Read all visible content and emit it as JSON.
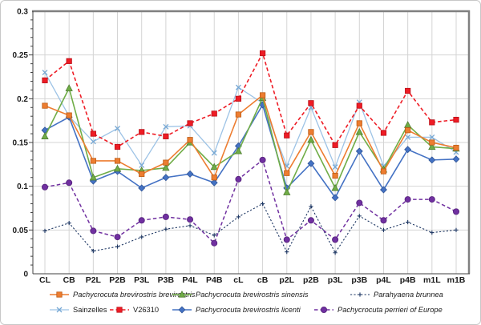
{
  "figure": {
    "background": "#ffffff",
    "border_color": "#c8c8c8",
    "grid_color": "#d4d4d4",
    "frame_dark": "#404040",
    "frame_gray": "#808080",
    "text_color": "#1a1a1a"
  },
  "chart_data": {
    "type": "line",
    "title": "",
    "xlabel": "",
    "ylabel": "",
    "ylim": [
      0,
      0.3
    ],
    "ytick_step": 0.05,
    "ytick_labels": [
      "0",
      "0.05",
      "0.1",
      "0.15",
      "0.2",
      "0.25",
      "0.3"
    ],
    "grid": true,
    "legend_position": "bottom",
    "categories": [
      "CL",
      "CB",
      "P2L",
      "P2B",
      "P3L",
      "P3B",
      "P4L",
      "P4B",
      "cL",
      "cB",
      "p2L",
      "p2B",
      "p3L",
      "p3B",
      "p4L",
      "p4B",
      "m1L",
      "m1B"
    ],
    "series": [
      {
        "name": "Pachycrocuta brevirostris brevirostris",
        "color": "#ED7D31",
        "edge": "#BC5B14",
        "marker": "square",
        "line": "solid",
        "line_width": 1.6,
        "italic": true,
        "values": [
          0.192,
          0.181,
          0.129,
          0.129,
          0.114,
          0.127,
          0.153,
          0.11,
          0.182,
          0.204,
          0.115,
          0.162,
          0.112,
          0.172,
          0.117,
          0.164,
          0.15,
          0.144
        ]
      },
      {
        "name": "Pachycrocuta brevirostris sinensis",
        "color": "#70AD47",
        "edge": "#507E32",
        "marker": "triangle",
        "line": "solid",
        "line_width": 1.6,
        "italic": true,
        "values": [
          0.157,
          0.212,
          0.11,
          0.12,
          0.118,
          0.121,
          0.15,
          0.122,
          0.14,
          0.201,
          0.093,
          0.153,
          0.098,
          0.162,
          0.119,
          0.17,
          0.145,
          0.143
        ]
      },
      {
        "name": "Parahyaena brunnea",
        "color": "#1F3864",
        "edge": "#1F3864",
        "marker": "plus",
        "line": "dotted",
        "line_width": 1.1,
        "italic": true,
        "values": [
          0.049,
          0.058,
          0.026,
          0.031,
          0.042,
          0.051,
          0.055,
          0.044,
          0.065,
          0.08,
          0.025,
          0.077,
          0.024,
          0.066,
          0.05,
          0.059,
          0.047,
          0.05
        ]
      },
      {
        "name": "Sainzelles",
        "color": "#9DC3E6",
        "edge": "#77A8D4",
        "marker": "x",
        "line": "solid",
        "line_width": 1.3,
        "italic": false,
        "values": [
          0.23,
          0.18,
          0.151,
          0.166,
          0.124,
          0.168,
          0.169,
          0.138,
          0.213,
          0.195,
          0.123,
          0.19,
          0.122,
          0.196,
          0.123,
          0.156,
          0.156,
          0.139
        ]
      },
      {
        "name": "V26310",
        "color": "#EE1C25",
        "edge": "#B90E16",
        "marker": "square",
        "line": "dashed",
        "line_width": 1.6,
        "italic": false,
        "values": [
          0.221,
          0.243,
          0.16,
          0.145,
          0.162,
          0.157,
          0.172,
          0.183,
          0.2,
          0.252,
          0.158,
          0.195,
          0.147,
          0.192,
          0.161,
          0.209,
          0.173,
          0.176
        ]
      },
      {
        "name": "Pachycrocuta brevirostris licenti",
        "color": "#4472C4",
        "edge": "#2F5597",
        "marker": "diamond",
        "line": "solid",
        "line_width": 1.6,
        "italic": true,
        "values": [
          0.164,
          0.179,
          0.106,
          0.117,
          0.098,
          0.11,
          0.114,
          0.104,
          0.146,
          0.193,
          0.098,
          0.126,
          0.087,
          0.14,
          0.096,
          0.142,
          0.13,
          0.131
        ]
      },
      {
        "name": "Pachycrocuta perrieri of Europe",
        "color": "#7030A0",
        "edge": "#54217A",
        "marker": "circle",
        "line": "dashed",
        "line_width": 1.5,
        "italic": true,
        "values": [
          0.099,
          0.104,
          0.049,
          0.042,
          0.061,
          0.065,
          0.062,
          0.035,
          0.108,
          0.13,
          0.039,
          0.061,
          0.039,
          0.081,
          0.061,
          0.085,
          0.085,
          0.071
        ]
      }
    ],
    "draw_order": [
      3,
      2,
      6,
      5,
      1,
      0,
      4
    ],
    "legend_rows": [
      [
        0,
        1,
        2
      ],
      [
        3,
        4,
        5,
        6
      ]
    ]
  }
}
